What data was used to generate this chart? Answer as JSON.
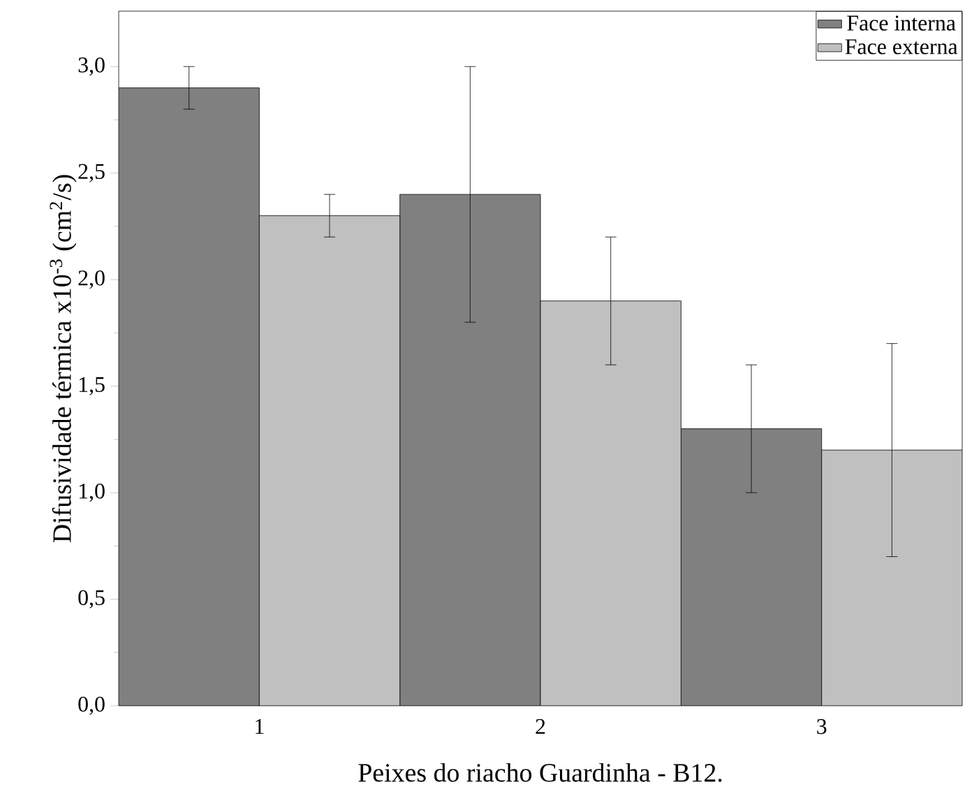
{
  "chart_data": {
    "type": "bar",
    "xlabel": "Peixes do riacho Guardinha - B12.",
    "ylabel": "Difusividade térmica x10$^{-3}$ (cm$^{2}$/s)",
    "categories": [
      "1",
      "2",
      "3"
    ],
    "series": [
      {
        "name": "Face interna",
        "color": "#808080",
        "values": [
          2.9,
          2.4,
          1.3
        ],
        "errors": [
          0.1,
          0.6,
          0.3
        ]
      },
      {
        "name": "Face externa",
        "color": "#c0c0c0",
        "values": [
          2.3,
          1.9,
          1.2
        ],
        "errors": [
          0.1,
          0.3,
          0.5
        ]
      }
    ],
    "ylim": [
      0,
      3.26
    ],
    "yticks": [
      {
        "value": 0,
        "label": "0,0"
      },
      {
        "value": 0.5,
        "label": "0,5"
      },
      {
        "value": 1.0,
        "label": "1,0"
      },
      {
        "value": 1.5,
        "label": "1,5"
      },
      {
        "value": 2.0,
        "label": "2,0"
      },
      {
        "value": 2.5,
        "label": "2,5"
      },
      {
        "value": 3.0,
        "label": "3,0"
      }
    ],
    "legend": "top right",
    "grid": false
  }
}
